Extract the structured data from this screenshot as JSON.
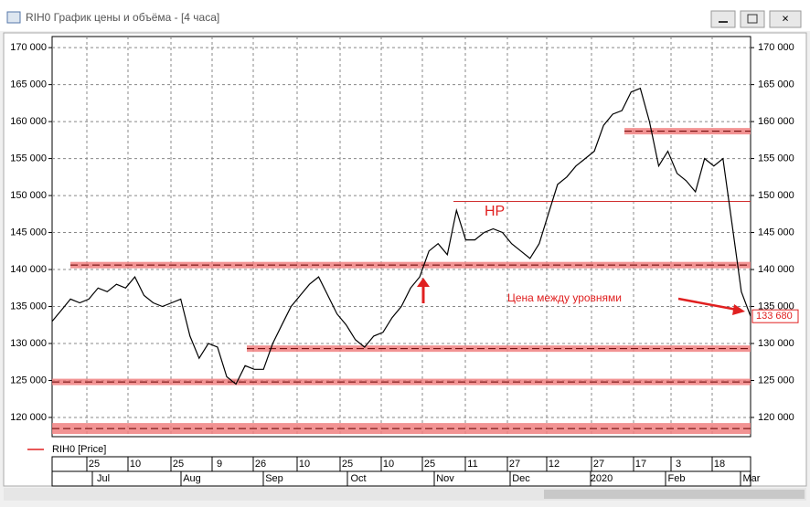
{
  "window": {
    "title": "RIH0 График цены и объёма - [4 часа]"
  },
  "chart_data": {
    "type": "line",
    "series": [
      {
        "name": "RIH0 [Price]",
        "color": "#000000",
        "values": [
          133000,
          134500,
          136000,
          135500,
          136000,
          137500,
          137000,
          138000,
          137500,
          139000,
          136500,
          135500,
          135000,
          135500,
          136000,
          131000,
          128000,
          130000,
          129500,
          125500,
          124500,
          127000,
          126500,
          126500,
          130000,
          132500,
          135000,
          136500,
          138000,
          139000,
          136500,
          134000,
          132500,
          130500,
          129500,
          131000,
          131500,
          133500,
          135000,
          137500,
          139000,
          142500,
          143500,
          142000,
          148000,
          144000,
          144000,
          145000,
          145500,
          145000,
          143500,
          142500,
          141500,
          143500,
          147500,
          151500,
          152500,
          154000,
          155000,
          156000,
          159500,
          161000,
          161500,
          164000,
          164500,
          160000,
          154000,
          156000,
          153000,
          152000,
          150500,
          155000,
          154000,
          155000,
          146000,
          137000,
          133680
        ]
      }
    ],
    "ylim": [
      117400,
      171500
    ],
    "yticks": [
      {
        "value": 120000,
        "label": "120 000"
      },
      {
        "value": 125000,
        "label": "125 000"
      },
      {
        "value": 130000,
        "label": "130 000"
      },
      {
        "value": 135000,
        "label": "135 000"
      },
      {
        "value": 140000,
        "label": "140 000"
      },
      {
        "value": 145000,
        "label": "145 000"
      },
      {
        "value": 150000,
        "label": "150 000"
      },
      {
        "value": 155000,
        "label": "155 000"
      },
      {
        "value": 160000,
        "label": "160 000"
      },
      {
        "value": 165000,
        "label": "165 000"
      },
      {
        "value": 170000,
        "label": "170 000"
      }
    ],
    "grid": true,
    "levels": [
      140600,
      129300,
      124800,
      118500,
      158700
    ],
    "level_color": "#f08080",
    "resistance_line": 149200,
    "last_price": {
      "value": 133680,
      "label": "133 680"
    },
    "annotations": [
      "HP",
      "Цена между уровнями"
    ],
    "annotation_color": "#e02020",
    "date_ticks": [
      "25",
      "10",
      "25",
      "9",
      "26",
      "10",
      "25",
      "10",
      "25",
      "11",
      "27",
      "12",
      "27",
      "17",
      "3",
      "18"
    ],
    "month_ticks": [
      "Jul",
      "Aug",
      "Sep",
      "Oct",
      "Nov",
      "Dec",
      "2020",
      "Feb",
      "Mar"
    ]
  }
}
